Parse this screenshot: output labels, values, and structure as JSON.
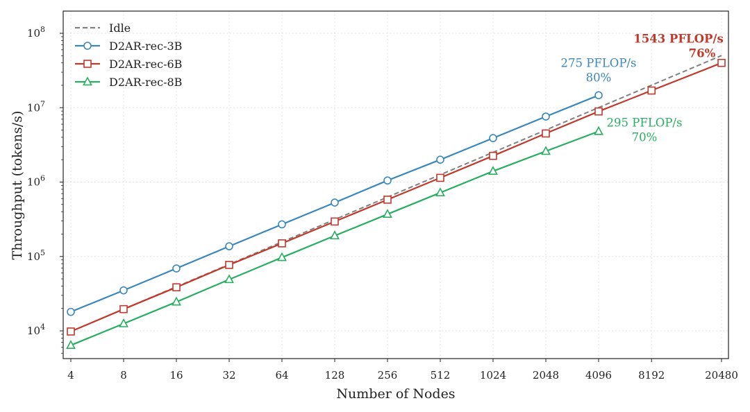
{
  "chart_data": {
    "type": "line",
    "xlabel": "Number of Nodes",
    "ylabel": "Throughput (tokens/s)",
    "x_scale": "log2",
    "y_scale": "log10",
    "xlim": [
      4,
      20480
    ],
    "ylim": [
      4500,
      150000000
    ],
    "x_ticks": [
      4,
      8,
      16,
      32,
      64,
      128,
      256,
      512,
      1024,
      2048,
      4096,
      8192,
      20480
    ],
    "x_tick_labels": [
      "4",
      "8",
      "16",
      "32",
      "64",
      "128",
      "256",
      "512",
      "1024",
      "2048",
      "4096",
      "8192",
      "20480"
    ],
    "y_ticks": [
      {
        "value": 10000,
        "base": "10",
        "exp": "4"
      },
      {
        "value": 100000,
        "base": "10",
        "exp": "5"
      },
      {
        "value": 1000000,
        "base": "10",
        "exp": "6"
      },
      {
        "value": 10000000,
        "base": "10",
        "exp": "7"
      },
      {
        "value": 100000000,
        "base": "10",
        "exp": "8"
      }
    ],
    "grid": true,
    "legend_position": "top-left",
    "series": [
      {
        "name": "Idle",
        "style": "dashed",
        "marker": "none",
        "color": "#808080",
        "x": [
          4,
          8,
          16,
          32,
          64,
          128,
          256,
          512,
          1024,
          2048,
          4096,
          8192,
          20480
        ],
        "values": [
          9800,
          19600,
          39200,
          78400,
          156800,
          313600,
          627200,
          1254400,
          2508800,
          5017600,
          10035200,
          20070400,
          50176000
        ]
      },
      {
        "name": "D2AR-rec-3B",
        "style": "solid",
        "marker": "circle",
        "color": "#3a87bd",
        "x": [
          4,
          8,
          16,
          32,
          64,
          128,
          256,
          512,
          1024,
          2048,
          4096
        ],
        "values": [
          18000,
          35000,
          69000,
          137000,
          270000,
          530000,
          1050000,
          2000000,
          3900000,
          7600000,
          14700000
        ]
      },
      {
        "name": "D2AR-rec-6B",
        "style": "solid",
        "marker": "square",
        "color": "#c0392b",
        "x": [
          4,
          8,
          16,
          32,
          64,
          128,
          256,
          512,
          1024,
          2048,
          4096,
          8192,
          20480
        ],
        "values": [
          9800,
          19600,
          38500,
          77000,
          150000,
          295000,
          580000,
          1140000,
          2250000,
          4500000,
          8900000,
          17000000,
          40000000
        ]
      },
      {
        "name": "D2AR-rec-8B",
        "style": "solid",
        "marker": "triangle",
        "color": "#27ae60",
        "x": [
          4,
          8,
          16,
          32,
          64,
          128,
          256,
          512,
          1024,
          2048,
          4096
        ],
        "values": [
          6400,
          12500,
          24500,
          49000,
          97000,
          190000,
          370000,
          720000,
          1400000,
          2600000,
          4800000
        ]
      }
    ],
    "annotations": [
      {
        "series": "D2AR-rec-3B",
        "line1": "275 PFLOP/s",
        "line2": "80%",
        "color": "#3a87bd",
        "bold": false
      },
      {
        "series": "D2AR-rec-6B",
        "line1": "1543 PFLOP/s",
        "line2": "76%",
        "color": "#c0392b",
        "bold": true
      },
      {
        "series": "D2AR-rec-8B",
        "line1": "295 PFLOP/s",
        "line2": "70%",
        "color": "#27ae60",
        "bold": false
      }
    ]
  }
}
